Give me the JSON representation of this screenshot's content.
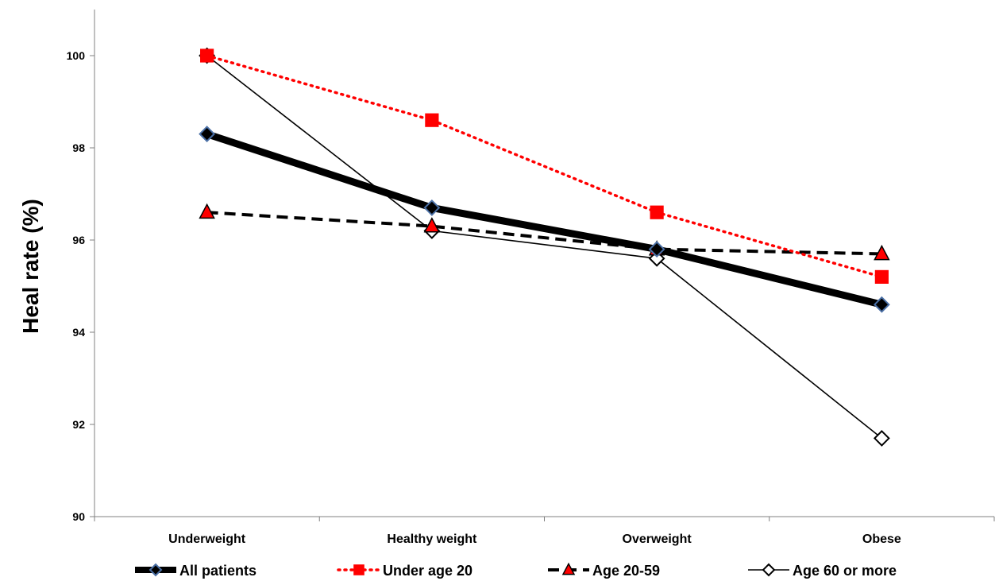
{
  "chart_data": {
    "type": "line",
    "title": "",
    "xlabel": "",
    "ylabel": "Heal rate (%)",
    "ylim": [
      90,
      100
    ],
    "ymax_display": 101,
    "yticks": [
      90,
      92,
      94,
      96,
      98,
      100
    ],
    "ytick_labels": [
      "90",
      "92",
      "94",
      "96",
      "98",
      "100"
    ],
    "grid": false,
    "legend_position": "bottom",
    "categories": [
      "Underweight",
      "Healthy weight",
      "Overweight",
      "Obese"
    ],
    "series": [
      {
        "name": "All patients",
        "values": [
          98.3,
          96.7,
          95.8,
          94.6
        ],
        "line_color": "#000000",
        "line_style": "solid-thick",
        "marker": "diamond",
        "marker_fill": "#000000",
        "marker_stroke": "#4a6fa5"
      },
      {
        "name": "Under age 20",
        "values": [
          100.0,
          98.6,
          96.6,
          95.2
        ],
        "line_color": "#ff0000",
        "line_style": "dotted",
        "marker": "square",
        "marker_fill": "#ff0000",
        "marker_stroke": "#ff0000"
      },
      {
        "name": "Age 20-59",
        "values": [
          96.6,
          96.3,
          95.8,
          95.7
        ],
        "line_color": "#000000",
        "line_style": "dashed",
        "marker": "triangle",
        "marker_fill": "#ff0000",
        "marker_stroke": "#000000"
      },
      {
        "name": "Age 60 or more",
        "values": [
          100.0,
          96.2,
          95.6,
          91.7
        ],
        "line_color": "#000000",
        "line_style": "solid-thin",
        "marker": "diamond",
        "marker_fill": "#ffffff",
        "marker_stroke": "#000000"
      }
    ]
  }
}
